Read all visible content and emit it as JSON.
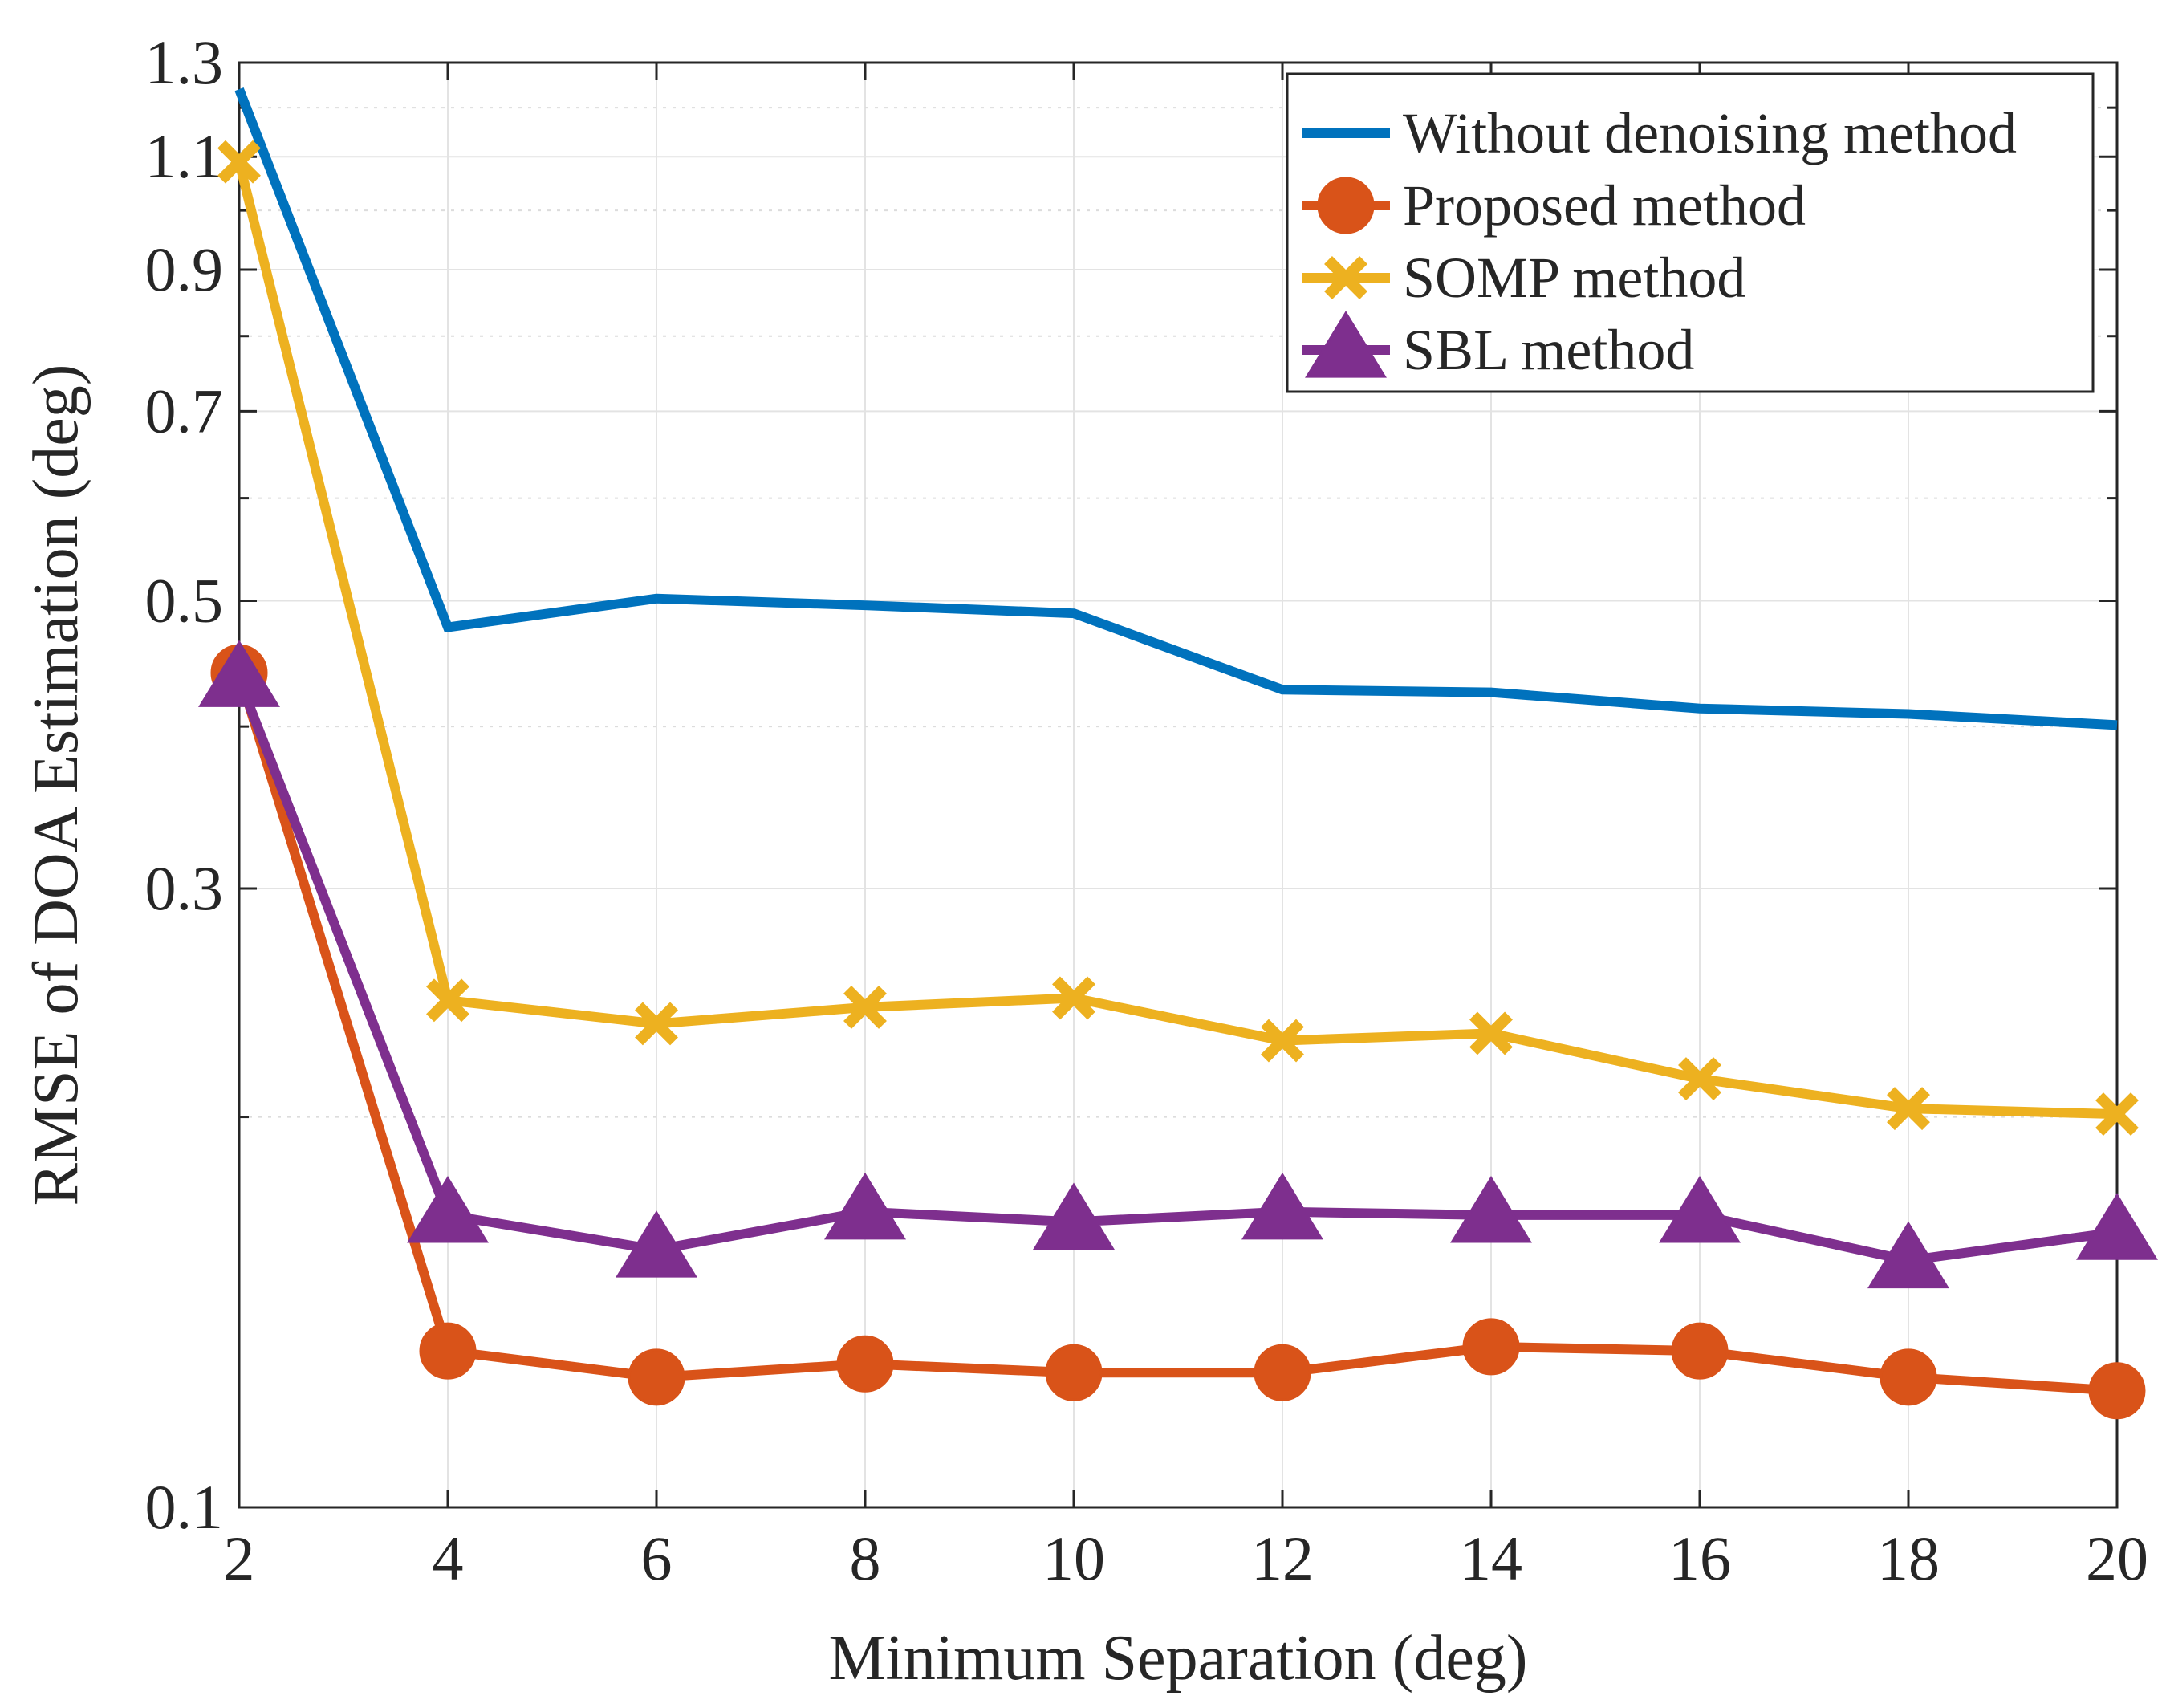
{
  "chart_data": {
    "type": "line",
    "title": "",
    "xlabel": "Minimum Separation (deg)",
    "ylabel": "RMSE of DOA Estimation (deg)",
    "yscale": "log",
    "xlim": [
      2,
      20
    ],
    "ylim": [
      0.1,
      1.3
    ],
    "xticks": [
      2,
      4,
      6,
      8,
      10,
      12,
      14,
      16,
      18,
      20
    ],
    "xtick_labels": [
      "2",
      "4",
      "6",
      "8",
      "10",
      "12",
      "14",
      "16",
      "18",
      "20"
    ],
    "yticks": [
      0.1,
      0.3,
      0.5,
      0.7,
      0.9,
      1.1,
      1.3
    ],
    "ytick_labels": [
      "0.1",
      "0.3",
      "0.5",
      "0.7",
      "0.9",
      "1.1",
      "1.3"
    ],
    "ygrid_extra": [
      0.2,
      0.4,
      0.6,
      0.8,
      1.0,
      1.2
    ],
    "grid": true,
    "legend_position": "top-right",
    "x": [
      2,
      4,
      6,
      8,
      10,
      12,
      14,
      16,
      18,
      20
    ],
    "series": [
      {
        "name": "Without denoising method",
        "color": "#0072BD",
        "marker": "none",
        "values": [
          1.24,
          0.477,
          0.502,
          0.496,
          0.489,
          0.427,
          0.425,
          0.413,
          0.409,
          0.401
        ]
      },
      {
        "name": "Proposed method",
        "color": "#D95319",
        "marker": "circle",
        "values": [
          0.44,
          0.132,
          0.126,
          0.129,
          0.127,
          0.127,
          0.133,
          0.132,
          0.126,
          0.123
        ]
      },
      {
        "name": "SOMP method",
        "color": "#EDB120",
        "marker": "x",
        "values": [
          1.09,
          0.246,
          0.236,
          0.243,
          0.247,
          0.229,
          0.232,
          0.214,
          0.203,
          0.201
        ]
      },
      {
        "name": "SBL method",
        "color": "#7E2F8E",
        "marker": "triangle",
        "values": [
          0.435,
          0.168,
          0.158,
          0.169,
          0.166,
          0.169,
          0.168,
          0.168,
          0.155,
          0.163
        ]
      }
    ]
  }
}
